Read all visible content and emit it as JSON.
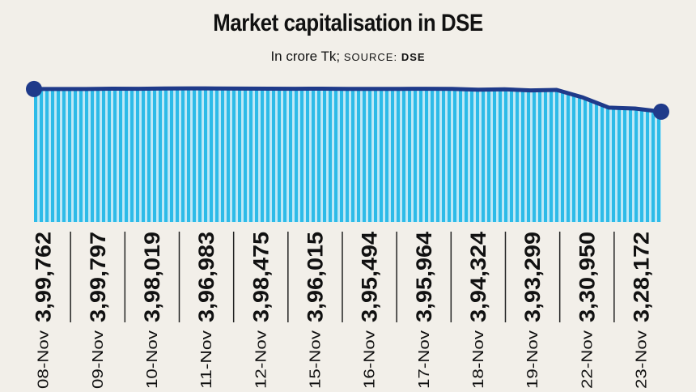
{
  "title": "Market capitalisation in DSE",
  "subtitle": {
    "unit": "In crore Tk;",
    "source_label": "SOURCE:",
    "source_name": "DSE"
  },
  "colors": {
    "area_fill": "#2dbbe8",
    "area_stripe": "#bfe8f7",
    "line": "#1f3a8a",
    "text": "#111111"
  },
  "chart_data": {
    "type": "area",
    "categories": [
      "08-Nov",
      "09-Nov",
      "10-Nov",
      "11-Nov",
      "12-Nov",
      "15-Nov",
      "16-Nov",
      "17-Nov",
      "18-Nov",
      "19-Nov",
      "22-Nov",
      "23-Nov"
    ],
    "value_labels": [
      "3,99,762",
      "3,99,797",
      "3,98,019",
      "3,96,983",
      "3,98,475",
      "3,96,015",
      "3,95,494",
      "3,95,964",
      "3,94,324",
      "3,93,299",
      "3,30,950",
      "3,28,172"
    ],
    "line_series": [
      399762,
      399762,
      399762,
      400150,
      400100,
      400400,
      400600,
      400450,
      400300,
      400200,
      400100,
      400150,
      400000,
      400000,
      400000,
      400100,
      399900,
      398800,
      399500,
      398000,
      398600,
      389000,
      376000,
      374800,
      370800
    ],
    "title": "Market capitalisation in DSE",
    "xlabel": "",
    "ylabel": "In crore Tk",
    "ylim": [
      230000,
      410000
    ]
  }
}
